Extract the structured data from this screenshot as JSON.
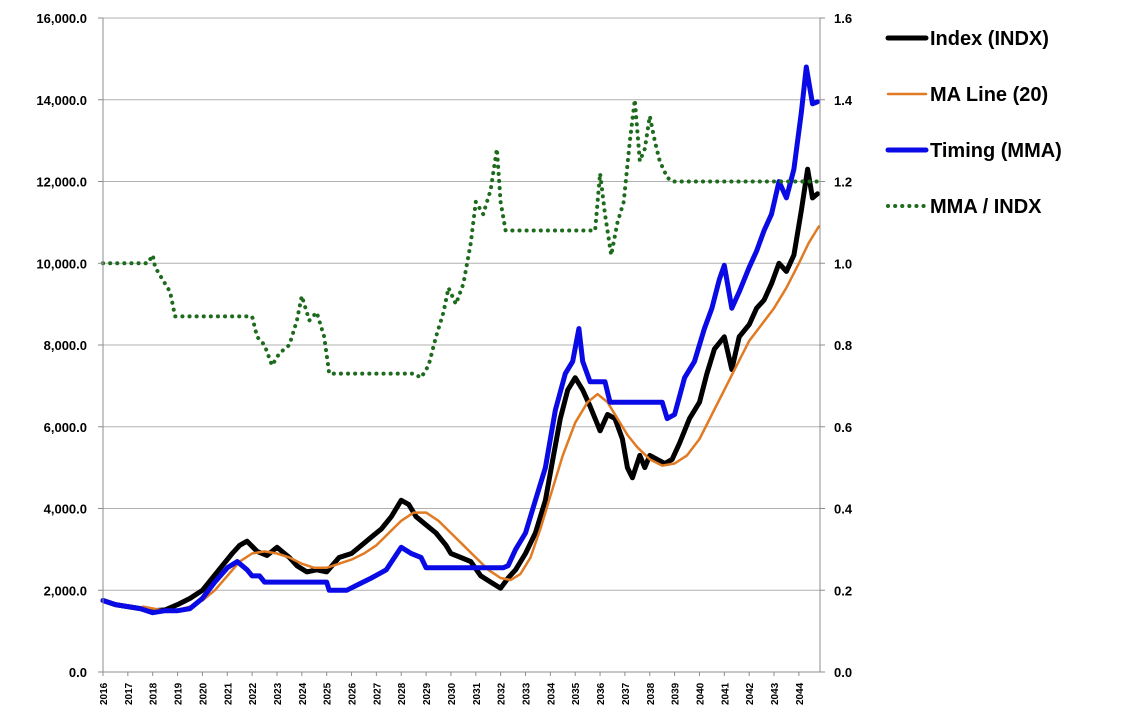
{
  "chart_data": {
    "type": "line",
    "title": "",
    "xlabel": "",
    "ylabel": "",
    "y2label": "",
    "grid": "horizontal",
    "legend_position": "right",
    "x_ticks": [
      "2016",
      "2017",
      "2018",
      "2019",
      "2020",
      "2021",
      "2022",
      "2023",
      "2024",
      "2025",
      "2026",
      "2027",
      "2028",
      "2029",
      "2030",
      "2031",
      "2032",
      "2033",
      "2034",
      "2035",
      "2036",
      "2037",
      "2038",
      "2039",
      "2040",
      "2041",
      "2042",
      "2043",
      "2044"
    ],
    "y_ticks": [
      "0.0",
      "2,000.0",
      "4,000.0",
      "6,000.0",
      "8,000.0",
      "10,000.0",
      "12,000.0",
      "14,000.0",
      "16,000.0"
    ],
    "y2_ticks": [
      "0.0",
      "0.2",
      "0.4",
      "0.6",
      "0.8",
      "1.0",
      "1.2",
      "1.4",
      "1.6"
    ],
    "ylim": [
      0,
      16000
    ],
    "y2lim": [
      0,
      1.6
    ],
    "xlim": [
      2016,
      2044.85
    ],
    "series": [
      {
        "name": "Index (INDX)",
        "axis": "left",
        "color": "#000000",
        "style": "solid",
        "width": 5,
        "points": [
          [
            2016,
            1750
          ],
          [
            2016.5,
            1650
          ],
          [
            2017,
            1600
          ],
          [
            2017.5,
            1550
          ],
          [
            2018,
            1500
          ],
          [
            2018.5,
            1520
          ],
          [
            2019,
            1650
          ],
          [
            2019.5,
            1800
          ],
          [
            2020,
            2000
          ],
          [
            2020.4,
            2300
          ],
          [
            2020.8,
            2600
          ],
          [
            2021.2,
            2900
          ],
          [
            2021.5,
            3100
          ],
          [
            2021.8,
            3200
          ],
          [
            2022.2,
            2950
          ],
          [
            2022.6,
            2850
          ],
          [
            2023,
            3050
          ],
          [
            2023.5,
            2800
          ],
          [
            2023.8,
            2600
          ],
          [
            2024.2,
            2450
          ],
          [
            2024.6,
            2500
          ],
          [
            2025,
            2450
          ],
          [
            2025.5,
            2800
          ],
          [
            2026,
            2900
          ],
          [
            2026.4,
            3100
          ],
          [
            2026.8,
            3300
          ],
          [
            2027.2,
            3500
          ],
          [
            2027.6,
            3800
          ],
          [
            2028,
            4200
          ],
          [
            2028.3,
            4100
          ],
          [
            2028.6,
            3800
          ],
          [
            2029,
            3600
          ],
          [
            2029.4,
            3400
          ],
          [
            2029.8,
            3100
          ],
          [
            2030,
            2900
          ],
          [
            2030.4,
            2800
          ],
          [
            2030.8,
            2700
          ],
          [
            2031.2,
            2350
          ],
          [
            2031.6,
            2200
          ],
          [
            2032,
            2050
          ],
          [
            2032.3,
            2300
          ],
          [
            2032.6,
            2500
          ],
          [
            2033,
            2900
          ],
          [
            2033.4,
            3400
          ],
          [
            2033.8,
            4200
          ],
          [
            2034.1,
            5200
          ],
          [
            2034.4,
            6200
          ],
          [
            2034.7,
            6900
          ],
          [
            2035,
            7200
          ],
          [
            2035.3,
            6900
          ],
          [
            2035.6,
            6500
          ],
          [
            2036,
            5900
          ],
          [
            2036.3,
            6300
          ],
          [
            2036.6,
            6200
          ],
          [
            2036.9,
            5700
          ],
          [
            2037.1,
            5000
          ],
          [
            2037.3,
            4750
          ],
          [
            2037.6,
            5300
          ],
          [
            2037.8,
            5000
          ],
          [
            2038,
            5300
          ],
          [
            2038.3,
            5200
          ],
          [
            2038.6,
            5100
          ],
          [
            2038.9,
            5200
          ],
          [
            2039.2,
            5600
          ],
          [
            2039.6,
            6200
          ],
          [
            2040,
            6600
          ],
          [
            2040.3,
            7300
          ],
          [
            2040.6,
            7900
          ],
          [
            2041,
            8200
          ],
          [
            2041.3,
            7400
          ],
          [
            2041.6,
            8200
          ],
          [
            2042,
            8500
          ],
          [
            2042.3,
            8900
          ],
          [
            2042.6,
            9100
          ],
          [
            2042.9,
            9500
          ],
          [
            2043.2,
            10000
          ],
          [
            2043.5,
            9800
          ],
          [
            2043.8,
            10200
          ],
          [
            2044.1,
            11300
          ],
          [
            2044.35,
            12300
          ],
          [
            2044.55,
            11600
          ],
          [
            2044.75,
            11700
          ]
        ]
      },
      {
        "name": "MA Line (20)",
        "axis": "left",
        "color": "#e07b24",
        "style": "solid",
        "width": 2.5,
        "points": [
          [
            2017.6,
            1600
          ],
          [
            2018.5,
            1500
          ],
          [
            2019,
            1520
          ],
          [
            2019.5,
            1600
          ],
          [
            2020,
            1750
          ],
          [
            2020.5,
            2000
          ],
          [
            2021,
            2350
          ],
          [
            2021.5,
            2700
          ],
          [
            2022,
            2900
          ],
          [
            2022.5,
            2950
          ],
          [
            2023,
            2900
          ],
          [
            2023.5,
            2800
          ],
          [
            2024,
            2650
          ],
          [
            2024.5,
            2550
          ],
          [
            2025,
            2550
          ],
          [
            2025.5,
            2650
          ],
          [
            2026,
            2750
          ],
          [
            2026.5,
            2900
          ],
          [
            2027,
            3100
          ],
          [
            2027.5,
            3400
          ],
          [
            2028,
            3700
          ],
          [
            2028.5,
            3900
          ],
          [
            2029,
            3900
          ],
          [
            2029.5,
            3700
          ],
          [
            2030,
            3400
          ],
          [
            2030.5,
            3100
          ],
          [
            2031,
            2800
          ],
          [
            2031.5,
            2500
          ],
          [
            2032,
            2300
          ],
          [
            2032.4,
            2250
          ],
          [
            2032.8,
            2400
          ],
          [
            2033.2,
            2800
          ],
          [
            2033.6,
            3500
          ],
          [
            2034,
            4300
          ],
          [
            2034.5,
            5300
          ],
          [
            2035,
            6100
          ],
          [
            2035.5,
            6600
          ],
          [
            2035.9,
            6800
          ],
          [
            2036.3,
            6600
          ],
          [
            2036.7,
            6200
          ],
          [
            2037.1,
            5800
          ],
          [
            2037.5,
            5500
          ],
          [
            2038,
            5200
          ],
          [
            2038.5,
            5050
          ],
          [
            2039,
            5100
          ],
          [
            2039.5,
            5300
          ],
          [
            2040,
            5700
          ],
          [
            2040.5,
            6300
          ],
          [
            2041,
            6900
          ],
          [
            2041.5,
            7500
          ],
          [
            2042,
            8100
          ],
          [
            2042.5,
            8500
          ],
          [
            2043,
            8900
          ],
          [
            2043.5,
            9400
          ],
          [
            2044,
            10000
          ],
          [
            2044.4,
            10500
          ],
          [
            2044.8,
            10900
          ]
        ]
      },
      {
        "name": "Timing (MMA)",
        "axis": "left",
        "color": "#0a0ae6",
        "style": "solid",
        "width": 5,
        "points": [
          [
            2016,
            1750
          ],
          [
            2016.5,
            1650
          ],
          [
            2017,
            1600
          ],
          [
            2017.5,
            1550
          ],
          [
            2018,
            1450
          ],
          [
            2018.5,
            1500
          ],
          [
            2019,
            1500
          ],
          [
            2019.5,
            1550
          ],
          [
            2020,
            1800
          ],
          [
            2020.5,
            2200
          ],
          [
            2021,
            2550
          ],
          [
            2021.4,
            2700
          ],
          [
            2021.8,
            2500
          ],
          [
            2022,
            2350
          ],
          [
            2022.3,
            2350
          ],
          [
            2022.5,
            2200
          ],
          [
            2023.5,
            2200
          ],
          [
            2023.6,
            2200
          ],
          [
            2025,
            2200
          ],
          [
            2025.1,
            2000
          ],
          [
            2025.8,
            2000
          ],
          [
            2026.3,
            2150
          ],
          [
            2026.8,
            2300
          ],
          [
            2027.4,
            2500
          ],
          [
            2028,
            3050
          ],
          [
            2028.4,
            2900
          ],
          [
            2028.8,
            2800
          ],
          [
            2029,
            2550
          ],
          [
            2032.1,
            2550
          ],
          [
            2032.3,
            2600
          ],
          [
            2032.6,
            3000
          ],
          [
            2033,
            3400
          ],
          [
            2033.4,
            4200
          ],
          [
            2033.8,
            5000
          ],
          [
            2034.2,
            6400
          ],
          [
            2034.6,
            7300
          ],
          [
            2034.9,
            7600
          ],
          [
            2035.15,
            8400
          ],
          [
            2035.3,
            7600
          ],
          [
            2035.6,
            7100
          ],
          [
            2036.2,
            7100
          ],
          [
            2036.4,
            6600
          ],
          [
            2038.5,
            6600
          ],
          [
            2038.7,
            6200
          ],
          [
            2039,
            6300
          ],
          [
            2039.4,
            7200
          ],
          [
            2039.8,
            7600
          ],
          [
            2040.2,
            8400
          ],
          [
            2040.5,
            8900
          ],
          [
            2040.8,
            9600
          ],
          [
            2041,
            9950
          ],
          [
            2041.3,
            8900
          ],
          [
            2041.6,
            9300
          ],
          [
            2042,
            9900
          ],
          [
            2042.3,
            10300
          ],
          [
            2042.6,
            10800
          ],
          [
            2042.9,
            11200
          ],
          [
            2043.2,
            12000
          ],
          [
            2043.5,
            11600
          ],
          [
            2043.8,
            12300
          ],
          [
            2044.1,
            13700
          ],
          [
            2044.3,
            14800
          ],
          [
            2044.55,
            13900
          ],
          [
            2044.75,
            13950
          ]
        ]
      },
      {
        "name": "MMA / INDX",
        "axis": "right",
        "color": "#1e6b1e",
        "style": "dotted",
        "width": 4,
        "points": [
          [
            2016,
            1.0
          ],
          [
            2017.5,
            1.0
          ],
          [
            2017.8,
            1.0
          ],
          [
            2018,
            1.02
          ],
          [
            2018.1,
            0.99
          ],
          [
            2018.4,
            0.96
          ],
          [
            2018.7,
            0.93
          ],
          [
            2018.9,
            0.87
          ],
          [
            2022,
            0.87
          ],
          [
            2022.2,
            0.82
          ],
          [
            2022.5,
            0.8
          ],
          [
            2022.8,
            0.75
          ],
          [
            2023.1,
            0.78
          ],
          [
            2023.5,
            0.8
          ],
          [
            2023.8,
            0.86
          ],
          [
            2024,
            0.92
          ],
          [
            2024.3,
            0.86
          ],
          [
            2024.6,
            0.88
          ],
          [
            2024.9,
            0.82
          ],
          [
            2025.1,
            0.73
          ],
          [
            2028.5,
            0.73
          ],
          [
            2028.8,
            0.72
          ],
          [
            2029.1,
            0.75
          ],
          [
            2029.4,
            0.82
          ],
          [
            2029.7,
            0.88
          ],
          [
            2029.9,
            0.94
          ],
          [
            2030.2,
            0.9
          ],
          [
            2030.5,
            0.95
          ],
          [
            2030.8,
            1.05
          ],
          [
            2031,
            1.15
          ],
          [
            2031.3,
            1.12
          ],
          [
            2031.6,
            1.18
          ],
          [
            2031.85,
            1.28
          ],
          [
            2032,
            1.15
          ],
          [
            2032.2,
            1.08
          ],
          [
            2035.8,
            1.08
          ],
          [
            2036,
            1.22
          ],
          [
            2036.2,
            1.12
          ],
          [
            2036.45,
            1.02
          ],
          [
            2036.7,
            1.1
          ],
          [
            2036.95,
            1.15
          ],
          [
            2037.2,
            1.3
          ],
          [
            2037.4,
            1.4
          ],
          [
            2037.6,
            1.25
          ],
          [
            2037.8,
            1.28
          ],
          [
            2038,
            1.36
          ],
          [
            2038.2,
            1.3
          ],
          [
            2038.4,
            1.25
          ],
          [
            2038.7,
            1.21
          ],
          [
            2038.9,
            1.2
          ],
          [
            2044.8,
            1.2
          ]
        ]
      }
    ]
  }
}
